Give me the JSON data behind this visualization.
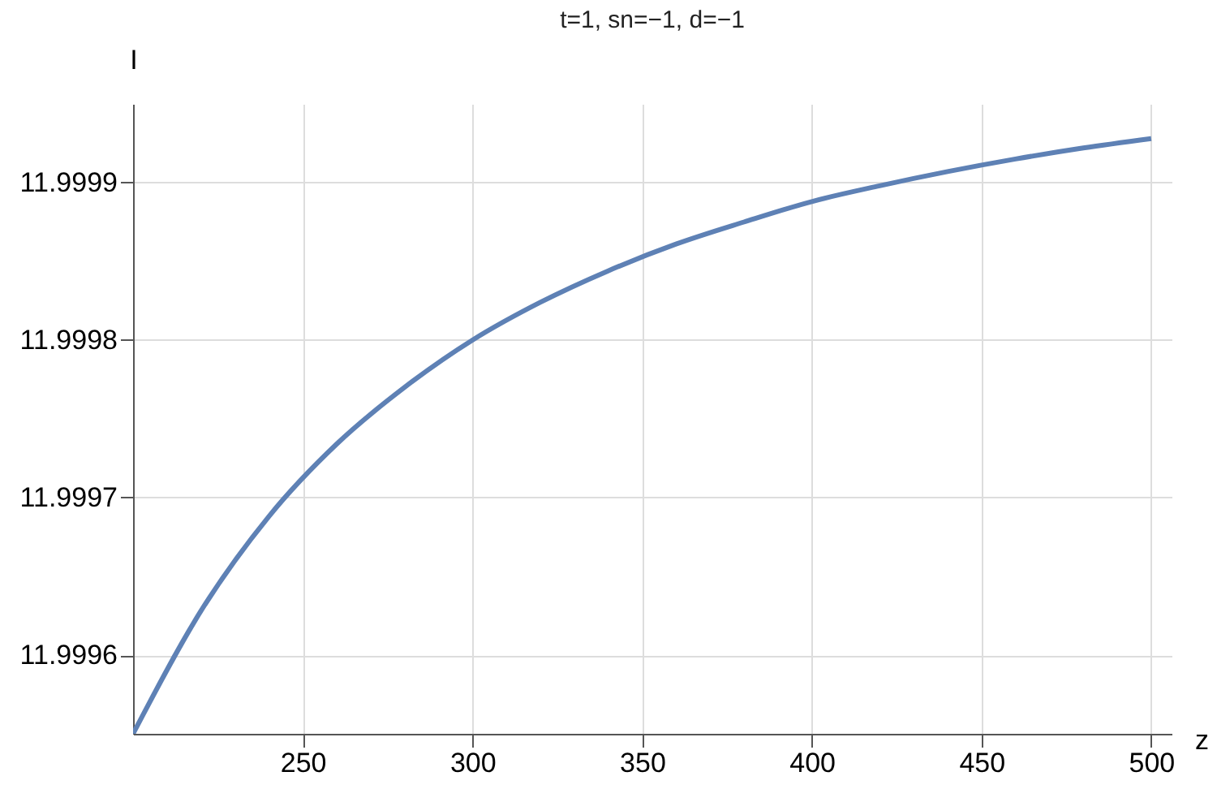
{
  "chart_data": {
    "type": "line",
    "title": "t=1, sn=−1, d=−1",
    "xlabel": "z",
    "ylabel": "I",
    "x": [
      200,
      220,
      240,
      260,
      280,
      300,
      320,
      340,
      360,
      380,
      400,
      420,
      440,
      460,
      480,
      500
    ],
    "series": [
      {
        "color": "#5e81b5",
        "values": [
          11.99955,
          11.999628,
          11.999688,
          11.999734,
          11.99977,
          11.9998,
          11.999824,
          11.999844,
          11.999861,
          11.999875,
          11.999888,
          11.999898,
          11.999907,
          11.999915,
          11.999922,
          11.999928
        ]
      }
    ],
    "xlim": [
      200,
      506
    ],
    "ylim": [
      11.99955,
      11.99995
    ],
    "xticks": [
      250,
      300,
      350,
      400,
      450,
      500
    ],
    "yticks": [
      11.9996,
      11.9997,
      11.9998,
      11.9999
    ],
    "grid": true,
    "marker": "none",
    "line_style": "solid"
  }
}
